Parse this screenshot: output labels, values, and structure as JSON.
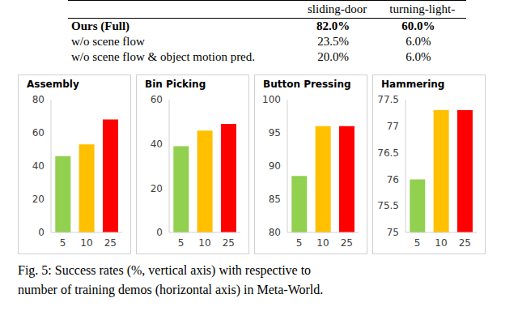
{
  "table": {
    "header": [
      "sliding-door",
      "turning-light-"
    ],
    "rows": [
      [
        "Ours (Full)",
        "82.0%",
        "60.0%"
      ],
      [
        "w/o scene flow",
        "23.5%",
        "6.0%"
      ],
      [
        "w/o scene flow & object motion pred.",
        "20.0%",
        "6.0%"
      ]
    ]
  },
  "chart_data": [
    {
      "type": "bar",
      "title": "Assembly",
      "categories": [
        "5",
        "10",
        "25"
      ],
      "values": [
        46,
        53,
        68
      ],
      "colors": [
        "#92d050",
        "#ffc000",
        "#ff0000"
      ],
      "ylim": [
        0,
        80
      ],
      "yticks": [
        0,
        20,
        40,
        60,
        80
      ],
      "grid": false
    },
    {
      "type": "bar",
      "title": "Bin Picking",
      "categories": [
        "5",
        "10",
        "25"
      ],
      "values": [
        39,
        46,
        49
      ],
      "colors": [
        "#92d050",
        "#ffc000",
        "#ff0000"
      ],
      "ylim": [
        0,
        60
      ],
      "yticks": [
        0,
        20,
        40,
        60
      ],
      "grid": false
    },
    {
      "type": "bar",
      "title": "Button Pressing",
      "categories": [
        "5",
        "10",
        "25"
      ],
      "values": [
        88.5,
        96,
        96
      ],
      "colors": [
        "#92d050",
        "#ffc000",
        "#ff0000"
      ],
      "ylim": [
        80,
        100
      ],
      "yticks": [
        80,
        85,
        90,
        95,
        100
      ],
      "grid": false
    },
    {
      "type": "bar",
      "title": "Hammering",
      "categories": [
        "5",
        "10",
        "25"
      ],
      "values": [
        76,
        77.3,
        77.3
      ],
      "colors": [
        "#92d050",
        "#ffc000",
        "#ff0000"
      ],
      "ylim": [
        75,
        77.5
      ],
      "yticks": [
        75,
        75.5,
        76,
        76.5,
        77,
        77.5
      ],
      "grid": false
    }
  ],
  "caption": [
    "Fig. 5: Success rates (%, vertical axis) with respective to",
    "number of training demos (horizontal axis) in Meta-World."
  ]
}
